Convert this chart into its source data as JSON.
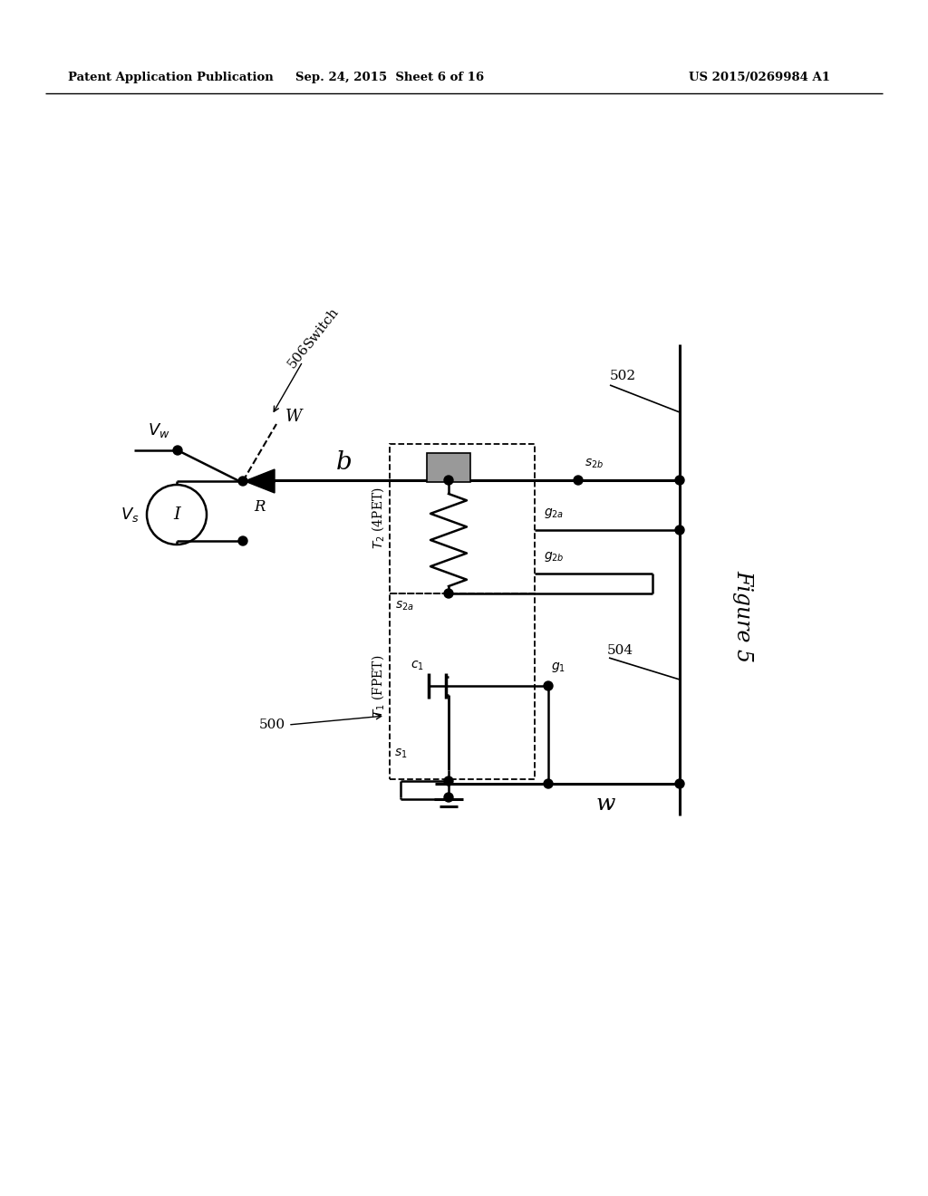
{
  "bg_color": "#ffffff",
  "line_color": "#000000",
  "header_left": "Patent Application Publication",
  "header_mid": "Sep. 24, 2015  Sheet 6 of 16",
  "header_right": "US 2015/0269984 A1",
  "figure_label": "Figure 5",
  "label_500": "500",
  "label_502": "502",
  "label_504": "504",
  "label_506": "506"
}
